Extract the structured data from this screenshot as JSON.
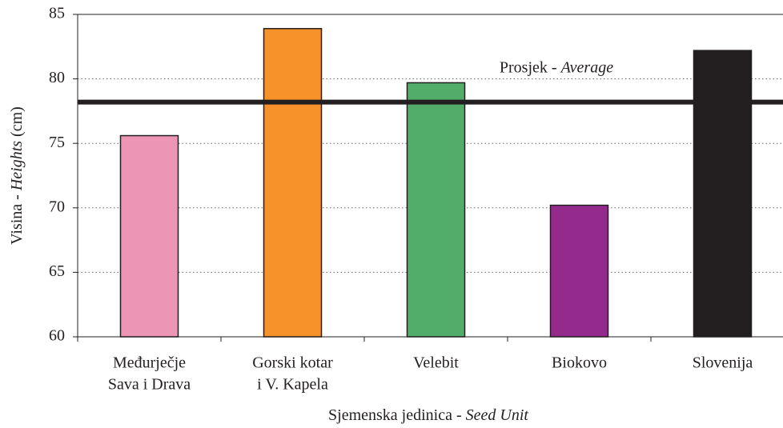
{
  "chart_data": {
    "type": "bar",
    "x_label": [
      "Sjemenska jedinica -",
      "Seed Unit"
    ],
    "y_label": [
      "Visina -",
      "Heights",
      "(cm)"
    ],
    "categories": [
      [
        "Međurječje",
        "Sava i Drava"
      ],
      [
        "Gorski kotar",
        "i V. Kapela"
      ],
      [
        "Velebit"
      ],
      [
        "Biokovo"
      ],
      [
        "Slovenija"
      ]
    ],
    "values": [
      75.6,
      83.9,
      79.7,
      70.2,
      82.2
    ],
    "colors": [
      "#ec95b5",
      "#f7922a",
      "#52ad6a",
      "#932a8c",
      "#231f20"
    ],
    "average": 78.2,
    "average_label": [
      "Prosjek -",
      "Average"
    ],
    "ylim": [
      60,
      85
    ],
    "yticks": [
      60,
      65,
      70,
      75,
      80,
      85
    ],
    "grid": true
  }
}
